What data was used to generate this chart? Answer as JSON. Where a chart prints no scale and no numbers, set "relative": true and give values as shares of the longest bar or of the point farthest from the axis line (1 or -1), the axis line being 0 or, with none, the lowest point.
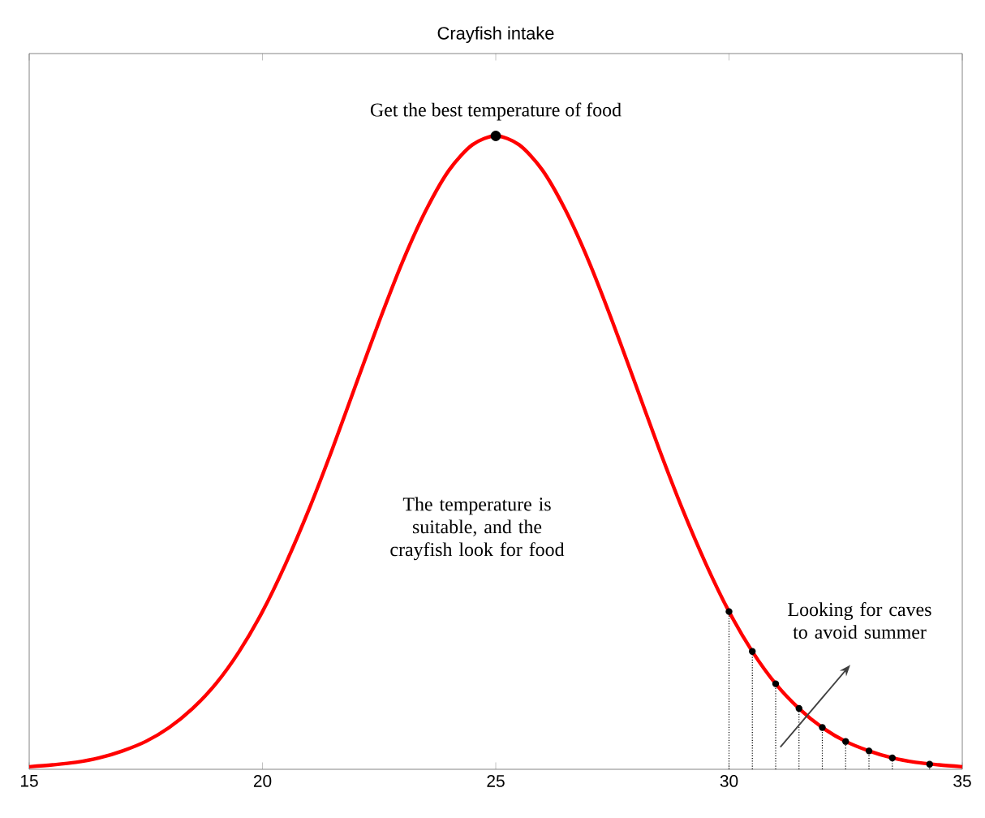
{
  "chart_data": {
    "type": "line",
    "title": "Crayfish intake",
    "relative": true,
    "xlim": [
      15,
      35
    ],
    "xticks": [
      15,
      20,
      25,
      30,
      35
    ],
    "tick_labels": "x",
    "grid": false,
    "annotations": [
      {
        "text": "Get the best temperature of food",
        "x": 25,
        "y": 1
      },
      "The temperature is suitable, and the crayfish look for food",
      "Looking for caves to avoid summer"
    ],
    "series": [
      {
        "color": "#ff0000",
        "marker": "none",
        "line_style": "solid",
        "x": [
          15,
          15.5,
          16,
          16.5,
          17,
          17.5,
          18,
          18.5,
          19,
          19.5,
          20,
          20.5,
          21,
          21.5,
          22,
          22.5,
          23,
          23.5,
          24,
          24.5,
          25,
          25.5,
          26,
          26.5,
          27,
          27.5,
          28,
          28.5,
          29,
          29.5,
          30,
          30.5,
          31,
          31.5,
          32,
          32.5,
          33,
          33.5,
          34,
          34.5,
          35
        ],
        "values": [
          0.004,
          0.007,
          0.011,
          0.018,
          0.029,
          0.044,
          0.066,
          0.096,
          0.135,
          0.186,
          0.249,
          0.325,
          0.411,
          0.506,
          0.607,
          0.707,
          0.801,
          0.882,
          0.946,
          0.986,
          1,
          0.986,
          0.946,
          0.882,
          0.801,
          0.707,
          0.607,
          0.506,
          0.411,
          0.325,
          0.249,
          0.186,
          0.135,
          0.096,
          0.066,
          0.044,
          0.029,
          0.018,
          0.011,
          0.007,
          0.004
        ]
      },
      {
        "type": "lollipop",
        "color": "#000000",
        "marker": "circle",
        "line_style": "dotted",
        "x": [
          30,
          30.5,
          31,
          31.5,
          32,
          32.5,
          33,
          33.5,
          34.3
        ],
        "values": [
          0.249,
          0.186,
          0.135,
          0.096,
          0.066,
          0.044,
          0.029,
          0.018,
          0.008
        ]
      },
      {
        "type": "scatter",
        "color": "#000000",
        "marker": "circle",
        "x": [
          25
        ],
        "values": [
          1
        ]
      }
    ]
  }
}
